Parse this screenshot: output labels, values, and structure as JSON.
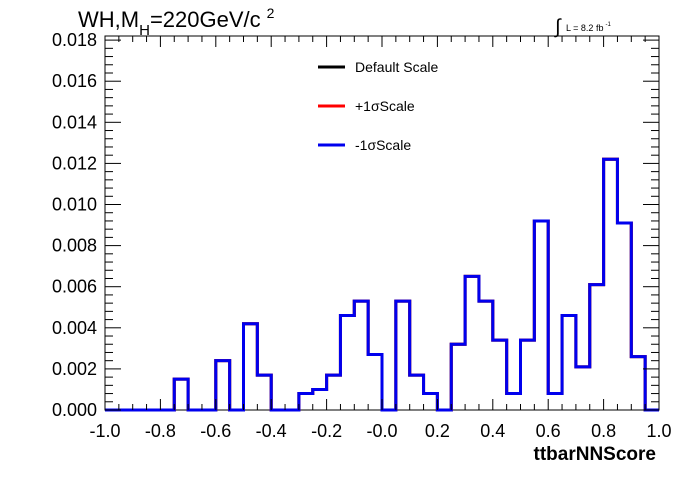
{
  "chart_data": {
    "type": "histogram",
    "title_main": "WH,M",
    "title_sub": "H",
    "title_rest": "=220GeV/c",
    "title_sup": "2",
    "lumi_label": "L = 8.2 fb",
    "lumi_sup": "-1",
    "xlabel": "ttbarNNScore",
    "xlim": [
      -1.0,
      1.0
    ],
    "ylim": [
      0.0,
      0.0182
    ],
    "x_ticks": [
      {
        "value": -1.0,
        "label": "-1.0"
      },
      {
        "value": -0.8,
        "label": "-0.8"
      },
      {
        "value": -0.6,
        "label": "-0.6"
      },
      {
        "value": -0.4,
        "label": "-0.4"
      },
      {
        "value": -0.2,
        "label": "-0.2"
      },
      {
        "value": 0.0,
        "label": "-0.0"
      },
      {
        "value": 0.2,
        "label": "0.2"
      },
      {
        "value": 0.4,
        "label": "0.4"
      },
      {
        "value": 0.6,
        "label": "0.6"
      },
      {
        "value": 0.8,
        "label": "0.8"
      },
      {
        "value": 1.0,
        "label": "1.0"
      }
    ],
    "y_ticks": [
      {
        "value": 0.0,
        "label": "0.000"
      },
      {
        "value": 0.002,
        "label": "0.002"
      },
      {
        "value": 0.004,
        "label": "0.004"
      },
      {
        "value": 0.006,
        "label": "0.006"
      },
      {
        "value": 0.008,
        "label": "0.008"
      },
      {
        "value": 0.01,
        "label": "0.010"
      },
      {
        "value": 0.012,
        "label": "0.012"
      },
      {
        "value": 0.014,
        "label": "0.014"
      },
      {
        "value": 0.016,
        "label": "0.016"
      },
      {
        "value": 0.018,
        "label": "0.018"
      }
    ],
    "bin_edges": [
      -1.0,
      -0.95,
      -0.9,
      -0.85,
      -0.8,
      -0.75,
      -0.7,
      -0.65,
      -0.6,
      -0.55,
      -0.5,
      -0.45,
      -0.4,
      -0.35,
      -0.3,
      -0.25,
      -0.2,
      -0.15,
      -0.1,
      -0.05,
      0.0,
      0.05,
      0.1,
      0.15,
      0.2,
      0.25,
      0.3,
      0.35,
      0.4,
      0.45,
      0.5,
      0.55,
      0.6,
      0.65,
      0.7,
      0.75,
      0.8,
      0.85,
      0.9,
      0.95,
      1.0
    ],
    "legend_position": "top-center",
    "series": [
      {
        "name": "Default Scale",
        "color": "#000000",
        "values": [
          0,
          0,
          0,
          0,
          0,
          0.0015,
          0,
          0,
          0.0024,
          0,
          0.0042,
          0.0017,
          0,
          0,
          0.0008,
          0.001,
          0.0017,
          0.0046,
          0.0053,
          0.0027,
          0,
          0.0053,
          0.0017,
          0.0008,
          0,
          0.0032,
          0.0065,
          0.0053,
          0.0034,
          0.0008,
          0.0034,
          0.0092,
          0.0008,
          0.0046,
          0.0021,
          0.0061,
          0.0122,
          0.0091,
          0.0026,
          0
        ]
      },
      {
        "name": "+1σScale",
        "color": "#ff0000",
        "values": [
          0,
          0,
          0,
          0,
          0,
          0.0015,
          0,
          0,
          0.0024,
          0,
          0.0042,
          0.0017,
          0,
          0,
          0.0008,
          0.001,
          0.0017,
          0.0046,
          0.0053,
          0.0027,
          0,
          0.0053,
          0.0017,
          0.0008,
          0,
          0.0032,
          0.0065,
          0.0053,
          0.0034,
          0.0008,
          0.0034,
          0.0092,
          0.0008,
          0.0046,
          0.0021,
          0.0061,
          0.0122,
          0.0091,
          0.0026,
          0
        ]
      },
      {
        "name": "-1σScale",
        "color": "#0000ee",
        "values": [
          0,
          0,
          0,
          0,
          0,
          0.0015,
          0,
          0,
          0.0024,
          0,
          0.0042,
          0.0017,
          0,
          0,
          0.0008,
          0.001,
          0.0017,
          0.0046,
          0.0053,
          0.0027,
          0,
          0.0053,
          0.0017,
          0.0008,
          0,
          0.0032,
          0.0065,
          0.0053,
          0.0034,
          0.0008,
          0.0034,
          0.0092,
          0.0008,
          0.0046,
          0.0021,
          0.0061,
          0.0122,
          0.0091,
          0.0026,
          0
        ]
      }
    ]
  }
}
